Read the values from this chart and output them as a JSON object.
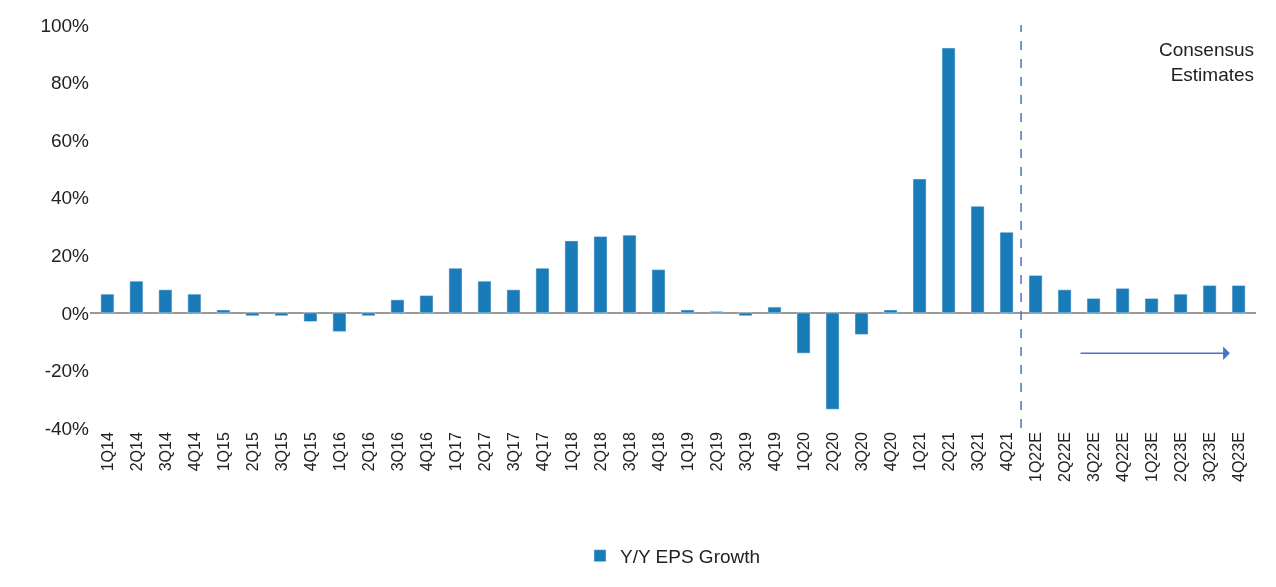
{
  "chart_data": {
    "type": "bar",
    "categories": [
      "1Q14",
      "2Q14",
      "3Q14",
      "4Q14",
      "1Q15",
      "2Q15",
      "3Q15",
      "4Q15",
      "1Q16",
      "2Q16",
      "3Q16",
      "4Q16",
      "1Q17",
      "2Q17",
      "3Q17",
      "4Q17",
      "1Q18",
      "2Q18",
      "3Q18",
      "4Q18",
      "1Q19",
      "2Q19",
      "3Q19",
      "4Q19",
      "1Q20",
      "2Q20",
      "3Q20",
      "4Q20",
      "1Q21",
      "2Q21",
      "3Q21",
      "4Q21",
      "1Q22E",
      "2Q22E",
      "3Q22E",
      "4Q22E",
      "1Q23E",
      "2Q23E",
      "3Q23E",
      "4Q23E"
    ],
    "series": [
      {
        "name": "Y/Y EPS Growth",
        "color": "#1a7bb9",
        "values": [
          6.5,
          11,
          8,
          6.5,
          1,
          -1,
          -1,
          -3,
          -6.5,
          -1,
          4.5,
          6,
          15.5,
          11,
          8,
          15.5,
          25,
          26.5,
          27,
          15,
          1,
          0.5,
          -1,
          2,
          -14,
          -33.5,
          -7.5,
          1,
          46.5,
          92,
          37,
          28,
          13,
          8,
          5,
          8.5,
          5,
          6.5,
          9.5,
          9.5
        ]
      }
    ],
    "ylim": [
      -40,
      100
    ],
    "yticks": [
      {
        "value": -40,
        "label": "-40%"
      },
      {
        "value": -20,
        "label": "-20%"
      },
      {
        "value": 0,
        "label": "0%"
      },
      {
        "value": 20,
        "label": "20%"
      },
      {
        "value": 40,
        "label": "40%"
      },
      {
        "value": 60,
        "label": "60%"
      },
      {
        "value": 80,
        "label": "80%"
      },
      {
        "value": 100,
        "label": "100%"
      }
    ],
    "ref_lines": [
      {
        "axis": "x",
        "value": "1Q22E",
        "color": "#4a72c8",
        "line_style": "dashed"
      }
    ],
    "annotations": [
      "Consensus\nEstimates"
    ],
    "legend": "bottom"
  }
}
